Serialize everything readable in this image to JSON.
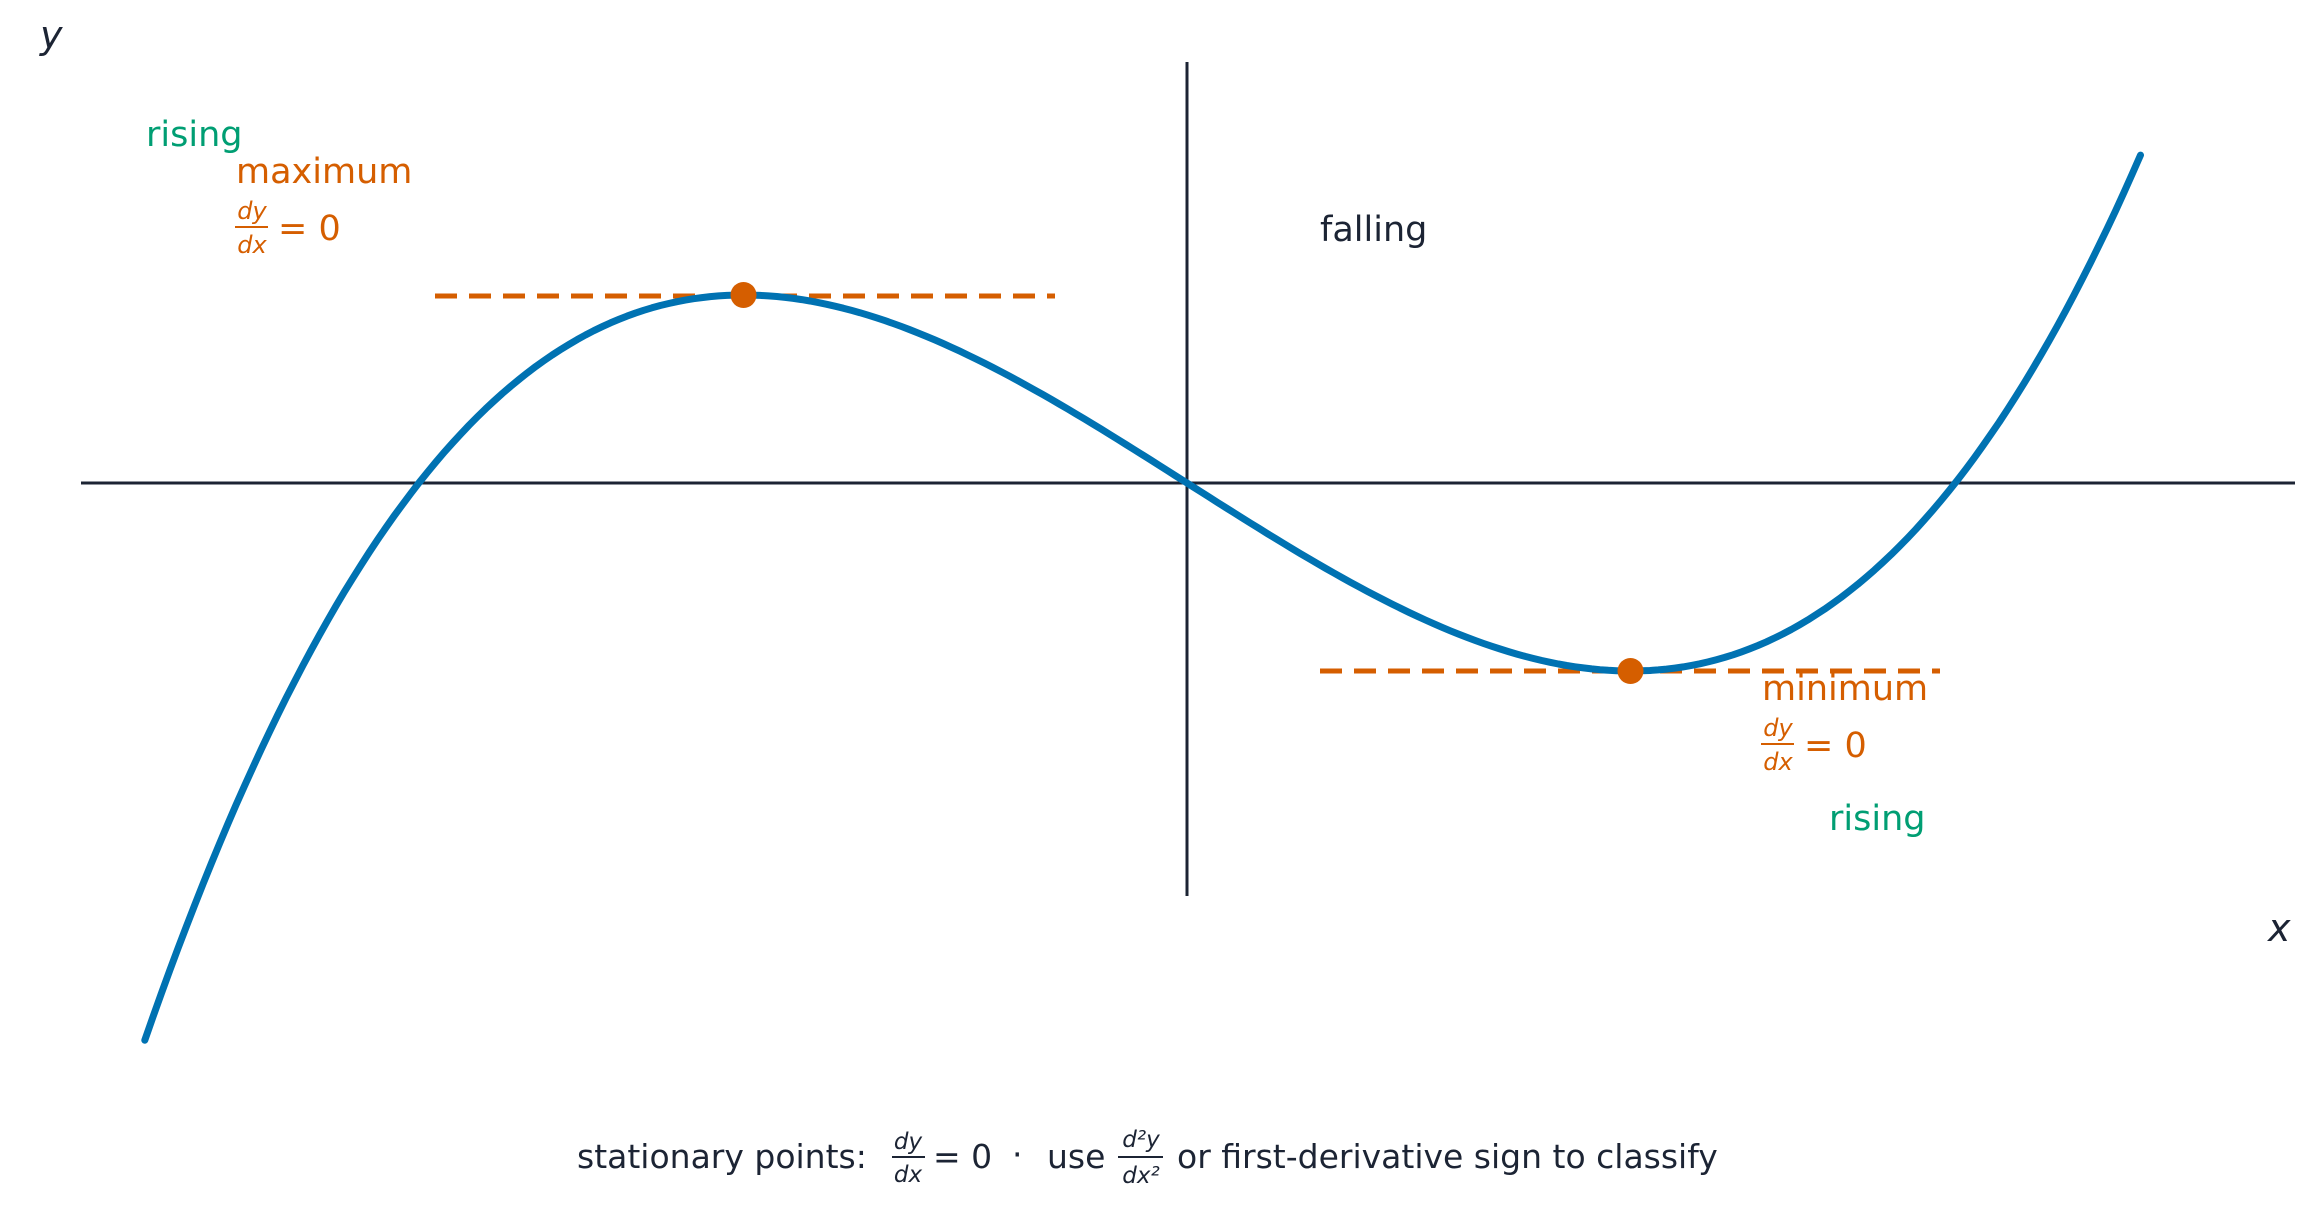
{
  "axes": {
    "x_label": "x",
    "y_label": "y"
  },
  "curve": {
    "equation": "y = x^3 - 3x",
    "x_range": [
      -2.35,
      2.15
    ]
  },
  "colors": {
    "curve": "#0072b2",
    "stationary": "#d55e00",
    "rising": "#009e73",
    "text": "#1c2434"
  },
  "points": {
    "maximum": {
      "x": -1,
      "y": 2,
      "label": "maximum",
      "condition_num": "dy",
      "condition_den": "dx",
      "condition_rhs": "= 0"
    },
    "minimum": {
      "x": 1,
      "y": -2,
      "label": "minimum",
      "condition_num": "dy",
      "condition_den": "dx",
      "condition_rhs": "= 0"
    }
  },
  "regions": {
    "rising_left": "rising",
    "falling": "falling",
    "rising_right": "rising"
  },
  "footer": {
    "prefix": "stationary points: ",
    "frac1_num": "dy",
    "frac1_den": "dx",
    "eq0": "= 0",
    "sep": "·",
    "use": "use",
    "frac2_num": "d²y",
    "frac2_den": "dx²",
    "suffix": "or first-derivative sign to classify"
  }
}
